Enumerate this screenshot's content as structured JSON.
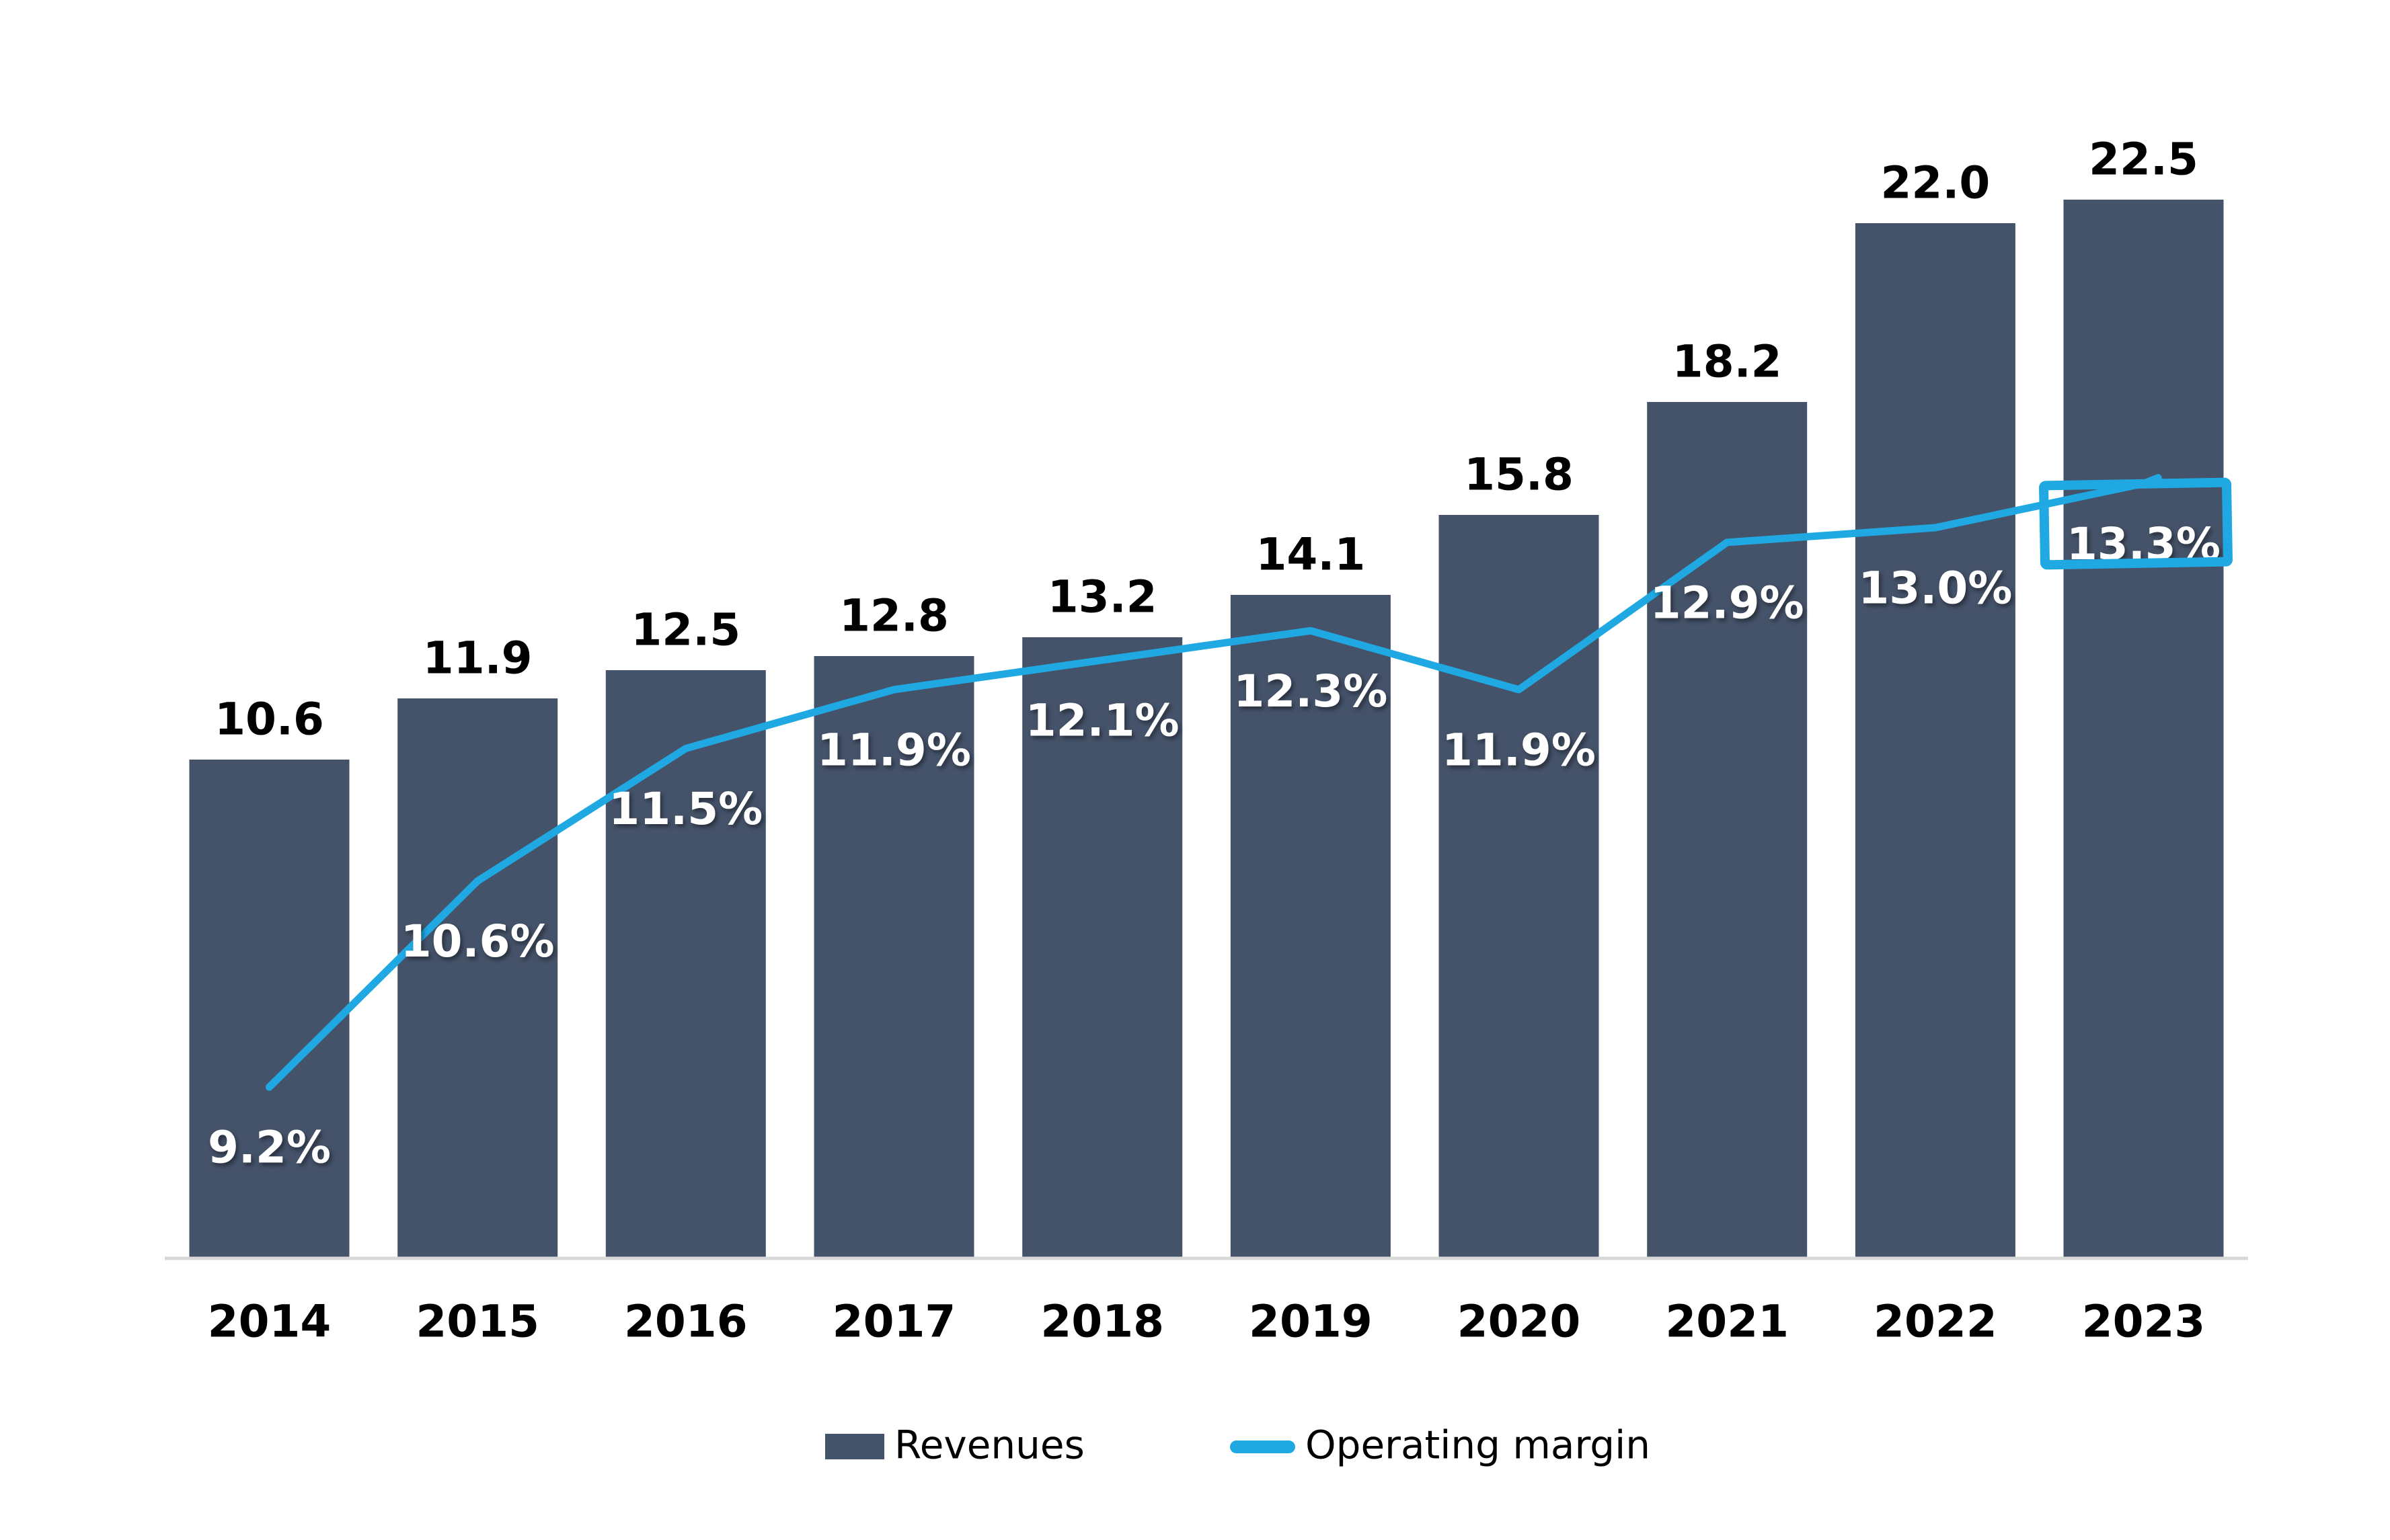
{
  "colors": {
    "bar": "#45536A",
    "line": "#1FA8E2",
    "axis_line": "#D9D9D9",
    "bar_value_label": "#000000",
    "line_value_label": "#FFFFFF",
    "year_label": "#000000",
    "background": "#FFFFFF",
    "highlight_box": "#1FA8E2"
  },
  "chart_data": {
    "type": "bar",
    "subtype": "bar-line-combo",
    "title": "",
    "xlabel": "",
    "ylabel": "",
    "grid": false,
    "categories": [
      "2014",
      "2015",
      "2016",
      "2017",
      "2018",
      "2019",
      "2020",
      "2021",
      "2022",
      "2023"
    ],
    "series": [
      {
        "name": "Revenues",
        "type": "bar",
        "values": [
          10.6,
          11.9,
          12.5,
          12.8,
          13.2,
          14.1,
          15.8,
          18.2,
          22.0,
          22.5
        ],
        "labels": [
          "10.6",
          "11.9",
          "12.5",
          "12.8",
          "13.2",
          "14.1",
          "15.8",
          "18.2",
          "22.0",
          "22.5"
        ]
      },
      {
        "name": "Operating margin",
        "type": "line",
        "values": [
          9.2,
          10.6,
          11.5,
          11.9,
          12.1,
          12.3,
          11.9,
          12.9,
          13.0,
          13.3
        ],
        "labels": [
          "9.2%",
          "10.6%",
          "11.5%",
          "11.9%",
          "12.1%",
          "12.3%",
          "11.9%",
          "12.9%",
          "13.0%",
          "13.3%"
        ]
      }
    ],
    "highlight": {
      "category": "2023",
      "series": "Operating margin",
      "label": "13.3%",
      "style": "box-outline"
    },
    "legend": {
      "position": "bottom-center",
      "items": [
        "Revenues",
        "Operating margin"
      ]
    },
    "axes": {
      "x_baseline_visible": true,
      "y_axis_visible": false,
      "bar_axis_min": 0
    }
  }
}
